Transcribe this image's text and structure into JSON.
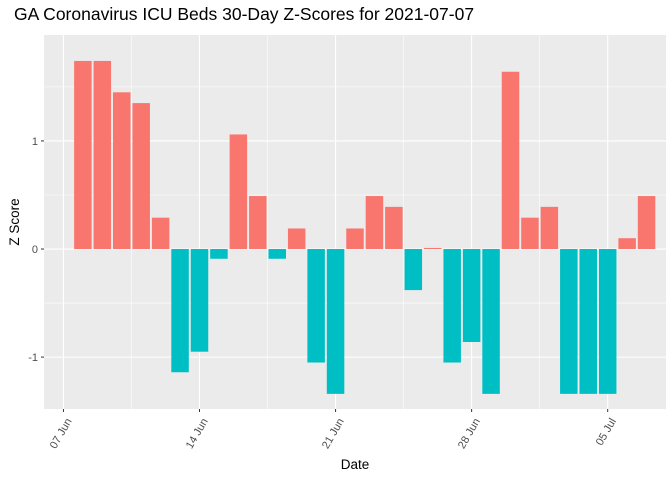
{
  "chart_data": {
    "type": "bar",
    "title": "GA Coronavirus ICU Beds 30-Day Z-Scores for 2021-07-07",
    "xlabel": "Date",
    "ylabel": "Z Score",
    "ylim": [
      -1.48,
      1.98
    ],
    "xlim": [
      "2021-06-06",
      "2021-07-08"
    ],
    "y_ticks": [
      -1,
      0,
      1
    ],
    "y_tick_labels": [
      "-1",
      "0",
      "1"
    ],
    "x_ticks": [
      "2021-06-07",
      "2021-06-14",
      "2021-06-21",
      "2021-06-28",
      "2021-07-05"
    ],
    "x_tick_labels": [
      "07 Jun",
      "14 Jun",
      "21 Jun",
      "28 Jun",
      "05 Jul"
    ],
    "grid": true,
    "legend": "none",
    "colors": {
      "positive": "#F8766D",
      "negative": "#00BFC4",
      "panel": "#EBEBEB",
      "grid": "#FFFFFF"
    },
    "x": [
      "2021-06-08",
      "2021-06-09",
      "2021-06-10",
      "2021-06-11",
      "2021-06-12",
      "2021-06-13",
      "2021-06-14",
      "2021-06-15",
      "2021-06-16",
      "2021-06-17",
      "2021-06-18",
      "2021-06-19",
      "2021-06-20",
      "2021-06-21",
      "2021-06-22",
      "2021-06-23",
      "2021-06-24",
      "2021-06-25",
      "2021-06-26",
      "2021-06-27",
      "2021-06-28",
      "2021-06-29",
      "2021-06-30",
      "2021-07-01",
      "2021-07-02",
      "2021-07-03",
      "2021-07-04",
      "2021-07-05",
      "2021-07-06",
      "2021-07-07"
    ],
    "values": [
      1.74,
      1.74,
      1.45,
      1.35,
      0.29,
      -1.14,
      -0.95,
      -0.09,
      1.06,
      0.49,
      -0.09,
      0.19,
      -1.05,
      -1.34,
      0.19,
      0.49,
      0.39,
      -0.38,
      0.01,
      -1.05,
      -0.86,
      -1.34,
      1.64,
      0.29,
      0.39,
      -1.34,
      -1.34,
      -1.34,
      0.1,
      0.49
    ]
  }
}
